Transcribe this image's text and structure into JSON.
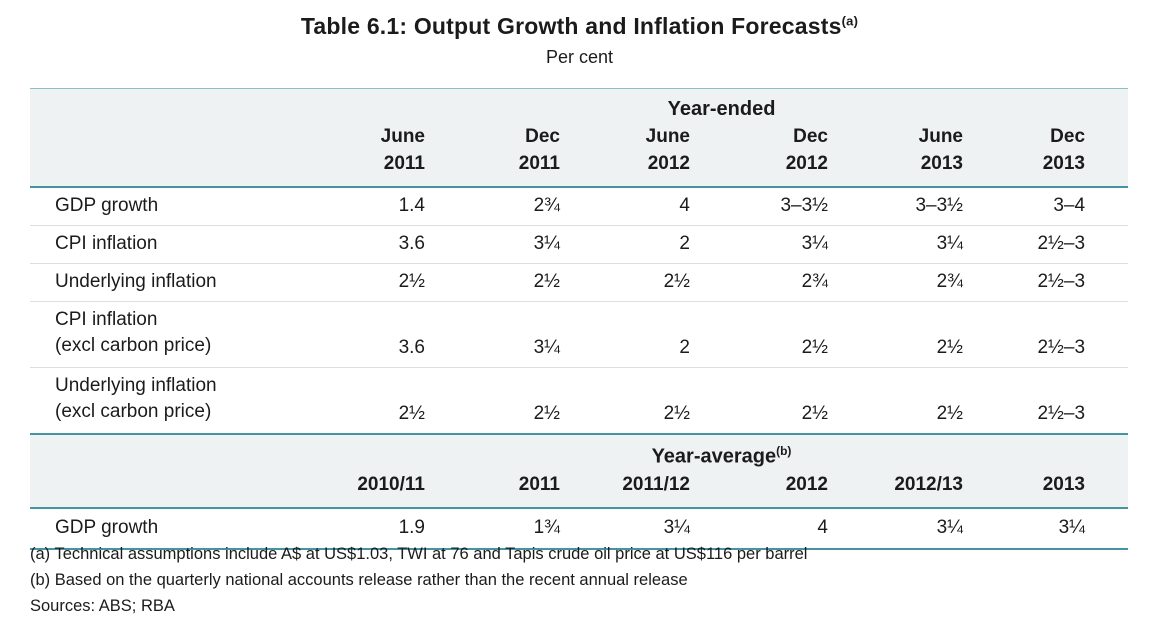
{
  "title": {
    "text": "Table 6.1: Output Growth and Inflation Forecasts",
    "superscript": "(a)"
  },
  "subtitle": "Per cent",
  "colors": {
    "teal_rule": "#4494a2",
    "band_background": "#eef2f2",
    "row_rule": "#dcdfdf",
    "text": "#1b1b1b"
  },
  "year_ended": {
    "section_label": "Year-ended",
    "months": [
      "June",
      "Dec",
      "June",
      "Dec",
      "June",
      "Dec"
    ],
    "years": [
      "2011",
      "2011",
      "2012",
      "2012",
      "2013",
      "2013"
    ],
    "rows": [
      {
        "label": "GDP growth",
        "values": [
          "1.4",
          "2¾",
          "4",
          "3–3½",
          "3–3½",
          "3–4"
        ]
      },
      {
        "label": "CPI inflation",
        "values": [
          "3.6",
          "3¼",
          "2",
          "3¼",
          "3¼",
          "2½–3"
        ]
      },
      {
        "label": "Underlying inflation",
        "values": [
          "2½",
          "2½",
          "2½",
          "2¾",
          "2¾",
          "2½–3"
        ]
      },
      {
        "label": "CPI inflation",
        "label2": "(excl carbon price)",
        "values": [
          "3.6",
          "3¼",
          "2",
          "2½",
          "2½",
          "2½–3"
        ]
      },
      {
        "label": "Underlying inflation",
        "label2": "(excl carbon price)",
        "values": [
          "2½",
          "2½",
          "2½",
          "2½",
          "2½",
          "2½–3"
        ]
      }
    ]
  },
  "year_average": {
    "section_label": "Year-average",
    "section_superscript": "(b)",
    "years": [
      "2010/11",
      "2011",
      "2011/12",
      "2012",
      "2012/13",
      "2013"
    ],
    "rows": [
      {
        "label": "GDP growth",
        "values": [
          "1.9",
          "1¾",
          "3¼",
          "4",
          "3¼",
          "3¼"
        ]
      }
    ]
  },
  "footnotes": [
    "(a) Technical assumptions include A$ at US$1.03, TWI at 76 and Tapis crude oil price at US$116 per barrel",
    "(b) Based on the quarterly national accounts release rather than the recent annual release",
    "Sources: ABS; RBA"
  ]
}
